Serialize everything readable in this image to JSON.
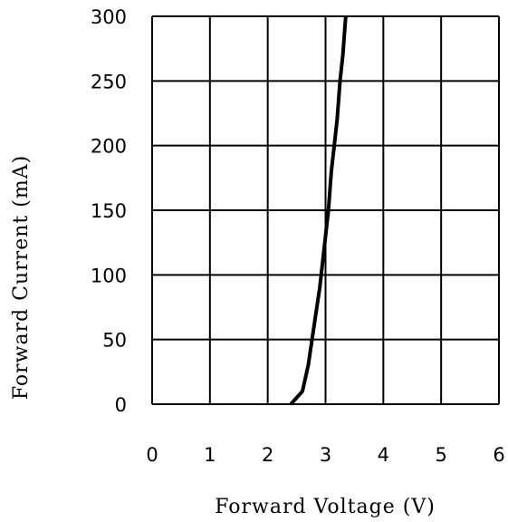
{
  "chart_data": {
    "type": "line",
    "xlabel": "Forward Voltage (V)",
    "ylabel": "Forward Current (mA)",
    "xlim": [
      0,
      6
    ],
    "ylim": [
      0,
      300
    ],
    "x_ticks": [
      "0",
      "1",
      "2",
      "3",
      "4",
      "5",
      "6"
    ],
    "y_ticks": [
      "0",
      "50",
      "100",
      "150",
      "200",
      "250",
      "300"
    ],
    "x_tick_values": [
      0,
      1,
      2,
      3,
      4,
      5,
      6
    ],
    "y_tick_values": [
      0,
      50,
      100,
      150,
      200,
      250,
      300
    ],
    "grid": true,
    "series": [
      {
        "x": [
          2.4,
          2.6,
          2.7,
          2.8,
          2.9,
          2.95,
          3.0,
          3.05,
          3.1,
          3.15,
          3.2,
          3.25,
          3.3,
          3.35
        ],
        "y": [
          0,
          10,
          30,
          60,
          90,
          110,
          130,
          150,
          180,
          200,
          220,
          250,
          270,
          300
        ]
      }
    ],
    "line_color": "#000000",
    "grid_color": "#000000"
  }
}
